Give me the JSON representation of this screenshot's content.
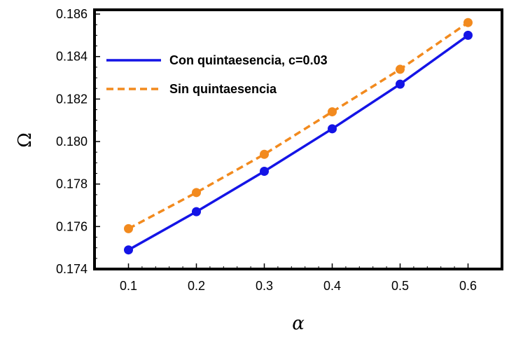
{
  "chart_data": {
    "type": "line",
    "title": "",
    "xlabel": "α",
    "ylabel": "Ω",
    "xlim": [
      0.05,
      0.65
    ],
    "ylim": [
      0.174,
      0.1862
    ],
    "x": [
      0.1,
      0.2,
      0.3,
      0.4,
      0.5,
      0.6
    ],
    "x_ticks": [
      0.1,
      0.2,
      0.3,
      0.4,
      0.5,
      0.6
    ],
    "x_tick_labels": [
      "0.1",
      "0.2",
      "0.3",
      "0.4",
      "0.5",
      "0.6"
    ],
    "y_ticks": [
      0.174,
      0.176,
      0.178,
      0.18,
      0.182,
      0.184,
      0.186
    ],
    "y_tick_labels": [
      "0.174",
      "0.176",
      "0.178",
      "0.180",
      "0.182",
      "0.184",
      "0.186"
    ],
    "grid": false,
    "legend_position": "top-left",
    "series": [
      {
        "name": "Con quintaesencia, c=0.03",
        "color": "#1414e6",
        "line_style": "solid",
        "marker": "circle",
        "values": [
          0.1749,
          0.1767,
          0.1786,
          0.1806,
          0.1827,
          0.185
        ]
      },
      {
        "name": "Sin quintaesencia",
        "color": "#f28a1e",
        "line_style": "dashed",
        "marker": "circle",
        "values": [
          0.1759,
          0.1776,
          0.1794,
          0.1814,
          0.1834,
          0.1856
        ]
      }
    ]
  }
}
